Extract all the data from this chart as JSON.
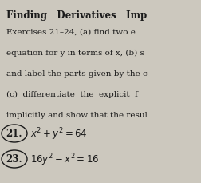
{
  "background_color": "#ccc8be",
  "title_line": "Finding   Derivatives   Imp",
  "body_lines": [
    "Exercises 21–24, (a) find two e",
    "equation for y in terms of x, (b) s",
    "and label the parts given by the c",
    "(c)  differentiate  the  explicit  f",
    "implicitly and show that the resul"
  ],
  "exercises": [
    {
      "number": "21.",
      "formula": "x^2 + y^2 = 64"
    },
    {
      "number": "23.",
      "formula": "16y^2 − x^2 = 16"
    }
  ],
  "font_size_title": 8.5,
  "font_size_body": 7.5,
  "font_size_exercise": 8.5,
  "text_color": "#1a1a1a"
}
